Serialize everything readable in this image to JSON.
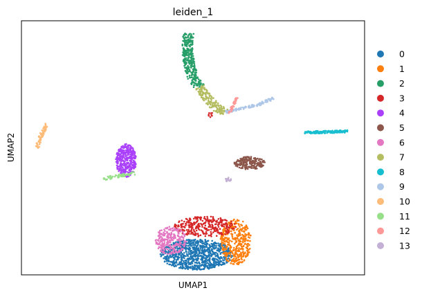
{
  "chart_data": {
    "type": "scatter",
    "title": "leiden_1",
    "xlabel": "UMAP1",
    "ylabel": "UMAP2",
    "xticks": [],
    "yticks": [],
    "xlim": [
      0,
      100
    ],
    "ylim": [
      0,
      100
    ],
    "grid": false,
    "legend_position": "right",
    "series": [
      {
        "name": "0",
        "color": "#1f77b4",
        "clusters": [
          {
            "shape": "blob",
            "cx": 51.0,
            "cy": 8.0,
            "rx": 10.5,
            "ry": 6.0,
            "n": 900
          }
        ]
      },
      {
        "name": "1",
        "color": "#ff7f0e",
        "clusters": [
          {
            "shape": "blob",
            "cx": 62.5,
            "cy": 13.0,
            "rx": 4.5,
            "ry": 9.0,
            "n": 380
          }
        ]
      },
      {
        "name": "2",
        "color": "#279e68",
        "clusters": [
          {
            "shape": "stroke",
            "points": [
              [
                48.7,
                95.0
              ],
              [
                48.3,
                89.0
              ],
              [
                49.0,
                82.0
              ],
              [
                50.2,
                77.0
              ],
              [
                52.0,
                74.0
              ]
            ],
            "width": 1.6,
            "n": 320
          }
        ]
      },
      {
        "name": "3",
        "color": "#d62728",
        "clusters": [
          {
            "shape": "blob",
            "cx": 53.5,
            "cy": 19.0,
            "rx": 9.0,
            "ry": 4.0,
            "n": 320
          },
          {
            "shape": "blob",
            "cx": 55.3,
            "cy": 63.0,
            "rx": 0.8,
            "ry": 1.0,
            "n": 8
          }
        ]
      },
      {
        "name": "4",
        "color": "#aa40fc",
        "clusters": [
          {
            "shape": "blob",
            "cx": 30.5,
            "cy": 45.0,
            "rx": 3.0,
            "ry": 6.5,
            "n": 380
          }
        ]
      },
      {
        "name": "5",
        "color": "#8c564b",
        "clusters": [
          {
            "shape": "blob",
            "cx": 66.5,
            "cy": 44.0,
            "rx": 4.5,
            "ry": 2.5,
            "n": 200
          }
        ]
      },
      {
        "name": "6",
        "color": "#e377c2",
        "clusters": [
          {
            "shape": "blob",
            "cx": 43.5,
            "cy": 13.5,
            "rx": 4.5,
            "ry": 5.5,
            "n": 260
          }
        ]
      },
      {
        "name": "7",
        "color": "#b5bd61",
        "clusters": [
          {
            "shape": "stroke",
            "points": [
              [
                52.0,
                74.0
              ],
              [
                54.0,
                70.0
              ],
              [
                56.5,
                66.0
              ],
              [
                59.5,
                64.0
              ]
            ],
            "width": 1.5,
            "n": 170
          }
        ]
      },
      {
        "name": "8",
        "color": "#17becf",
        "clusters": [
          {
            "shape": "stroke",
            "points": [
              [
                82.5,
                56.0
              ],
              [
                88.0,
                56.2
              ],
              [
                95.0,
                56.5
              ]
            ],
            "width": 0.5,
            "n": 150
          }
        ]
      },
      {
        "name": "9",
        "color": "#aec7e8",
        "clusters": [
          {
            "shape": "stroke",
            "points": [
              [
                59.5,
                64.0
              ],
              [
                64.0,
                65.5
              ],
              [
                69.0,
                67.0
              ],
              [
                73.5,
                69.5
              ]
            ],
            "width": 0.5,
            "n": 120
          }
        ]
      },
      {
        "name": "10",
        "color": "#ffbb78",
        "clusters": [
          {
            "shape": "stroke",
            "points": [
              [
                7.3,
                59.5
              ],
              [
                5.8,
                55.0
              ],
              [
                4.5,
                50.0
              ]
            ],
            "width": 0.6,
            "n": 80
          }
        ]
      },
      {
        "name": "11",
        "color": "#98df8a",
        "clusters": [
          {
            "shape": "stroke",
            "points": [
              [
                24.0,
                37.8
              ],
              [
                28.0,
                38.8
              ],
              [
                33.0,
                40.0
              ]
            ],
            "width": 0.6,
            "n": 70
          }
        ]
      },
      {
        "name": "12",
        "color": "#ff9896",
        "clusters": [
          {
            "shape": "stroke",
            "points": [
              [
                60.5,
                63.5
              ],
              [
                61.8,
                67.0
              ],
              [
                62.8,
                69.8
              ]
            ],
            "width": 0.4,
            "n": 40
          }
        ]
      },
      {
        "name": "13",
        "color": "#c5b0d5",
        "clusters": [
          {
            "shape": "blob",
            "cx": 60.3,
            "cy": 37.5,
            "rx": 0.8,
            "ry": 1.0,
            "n": 25
          }
        ]
      }
    ]
  }
}
